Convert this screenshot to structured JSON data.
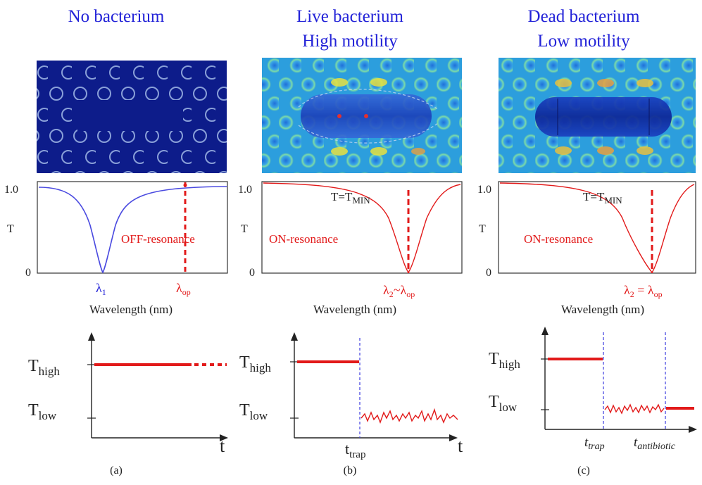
{
  "colors": {
    "title": "#2323d8",
    "red": "#e21a1a",
    "blue_curve": "#4a4ae0",
    "dark_blue_bg": "#0d1c8a"
  },
  "panels": [
    {
      "id": "a",
      "title_line1": "No bacterium",
      "title_line2": "",
      "y_axis_label": "T",
      "y_top": "1.0",
      "y_bottom": "0",
      "resonance_text": "OFF-resonance",
      "lambda_left": "λ",
      "lambda_left_sub": "1",
      "lambda_right": "λ",
      "lambda_right_sub": "op",
      "xlabel": "Wavelength (nm)",
      "t_high": "T",
      "t_high_sub": "high",
      "t_low": "T",
      "t_low_sub": "low",
      "time_axis": "t",
      "caption": "(a)"
    },
    {
      "id": "b",
      "title_line1": "Live bacterium",
      "title_line2": "High motility",
      "y_axis_label": "T",
      "y_top": "1.0",
      "y_bottom": "0",
      "tmin_text": "T=T",
      "tmin_sub": "MIN",
      "resonance_text": "ON-resonance",
      "lambda_eq": "λ",
      "lambda_eq_sub": "2",
      "lambda_eq_rel": "~λ",
      "lambda_eq_sub2": "op",
      "xlabel": "Wavelength (nm)",
      "t_high": "T",
      "t_high_sub": "high",
      "t_low": "T",
      "t_low_sub": "low",
      "time_axis": "t",
      "t_trap": "t",
      "t_trap_sub": "trap",
      "caption": "(b)"
    },
    {
      "id": "c",
      "title_line1": "Dead bacterium",
      "title_line2": "Low motility",
      "y_axis_label": "T",
      "y_top": "1.0",
      "y_bottom": "0",
      "tmin_text": "T=T",
      "tmin_sub": "MIN",
      "resonance_text": "ON-resonance",
      "lambda_eq": "λ",
      "lambda_eq_sub": "2",
      "lambda_eq_rel": " = λ",
      "lambda_eq_sub2": "op",
      "xlabel": "Wavelength (nm)",
      "t_high": "T",
      "t_high_sub": "high",
      "t_low": "T",
      "t_low_sub": "low",
      "time_axis": "t",
      "t_trap": "t",
      "t_trap_sub": "trap",
      "t_antibiotic": "t",
      "t_antibiotic_sub": "antibiotic",
      "caption": "(c)"
    }
  ]
}
